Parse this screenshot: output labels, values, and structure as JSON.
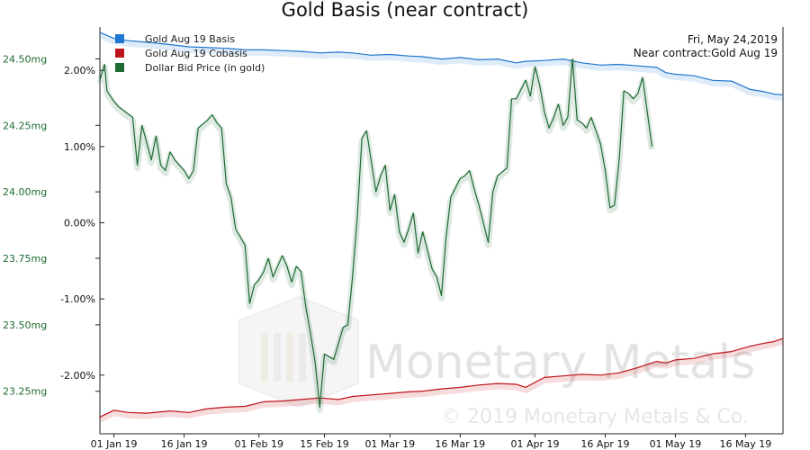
{
  "chart_data": {
    "type": "line",
    "title": "Gold Basis (near contract)",
    "info": {
      "date": "Fri, May 24,2019",
      "near_contract": "Near contract:Gold Aug 19"
    },
    "x_ticks": [
      "01 Jan 19",
      "16 Jan 19",
      "01 Feb 19",
      "15 Feb 19",
      "01 Mar 19",
      "16 Mar 19",
      "01 Apr 19",
      "16 Apr 19",
      "01 May 19",
      "16 May 19"
    ],
    "left_axis": {
      "ticks": [
        "24.50mg",
        "24.25mg",
        "24.00mg",
        "23.75mg",
        "23.50mg",
        "23.25mg"
      ],
      "values": [
        24.5,
        24.25,
        24.0,
        23.75,
        23.5,
        23.25
      ],
      "range": [
        23.09,
        24.62
      ],
      "color": "#1f6b33"
    },
    "right_axis": {
      "ticks": [
        "2.00%",
        "1.00%",
        "0.00%",
        "-1.00%",
        "-2.00%"
      ],
      "values": [
        2.0,
        1.0,
        0.0,
        -1.0,
        -2.0
      ],
      "range": [
        -2.77,
        2.57
      ]
    },
    "x_range": [
      -3,
      143
    ],
    "series": [
      {
        "name": "Gold Aug 19 Basis",
        "color": "#1f77d0",
        "axis": "right",
        "points": [
          [
            -3,
            2.5
          ],
          [
            0,
            2.42
          ],
          [
            3,
            2.39
          ],
          [
            7,
            2.37
          ],
          [
            12,
            2.34
          ],
          [
            16,
            2.31
          ],
          [
            20,
            2.3
          ],
          [
            24,
            2.29
          ],
          [
            28,
            2.27
          ],
          [
            32,
            2.27
          ],
          [
            36,
            2.26
          ],
          [
            40,
            2.25
          ],
          [
            44,
            2.23
          ],
          [
            48,
            2.24
          ],
          [
            51,
            2.23
          ],
          [
            55,
            2.2
          ],
          [
            59,
            2.21
          ],
          [
            63,
            2.19
          ],
          [
            66,
            2.18
          ],
          [
            70,
            2.15
          ],
          [
            74,
            2.17
          ],
          [
            78,
            2.14
          ],
          [
            82,
            2.15
          ],
          [
            86,
            2.1
          ],
          [
            88,
            2.12
          ],
          [
            92,
            2.13
          ],
          [
            96,
            2.15
          ],
          [
            100,
            2.1
          ],
          [
            104,
            2.07
          ],
          [
            108,
            2.08
          ],
          [
            112,
            2.06
          ],
          [
            116,
            2.04
          ],
          [
            118,
            1.97
          ],
          [
            120,
            1.95
          ],
          [
            124,
            1.93
          ],
          [
            128,
            1.87
          ],
          [
            132,
            1.86
          ],
          [
            136,
            1.75
          ],
          [
            139,
            1.72
          ],
          [
            141,
            1.69
          ],
          [
            143,
            1.68
          ]
        ]
      },
      {
        "name": "Gold Aug 19 Cobasis",
        "color": "#c0141b",
        "axis": "right",
        "points": [
          [
            -3,
            -2.55
          ],
          [
            0,
            -2.46
          ],
          [
            3,
            -2.49
          ],
          [
            7,
            -2.5
          ],
          [
            12,
            -2.47
          ],
          [
            16,
            -2.49
          ],
          [
            20,
            -2.44
          ],
          [
            24,
            -2.42
          ],
          [
            28,
            -2.41
          ],
          [
            32,
            -2.35
          ],
          [
            36,
            -2.34
          ],
          [
            40,
            -2.32
          ],
          [
            44,
            -2.3
          ],
          [
            48,
            -2.32
          ],
          [
            51,
            -2.28
          ],
          [
            55,
            -2.26
          ],
          [
            59,
            -2.24
          ],
          [
            63,
            -2.22
          ],
          [
            66,
            -2.21
          ],
          [
            70,
            -2.18
          ],
          [
            74,
            -2.16
          ],
          [
            78,
            -2.13
          ],
          [
            82,
            -2.11
          ],
          [
            86,
            -2.12
          ],
          [
            88,
            -2.16
          ],
          [
            92,
            -2.03
          ],
          [
            96,
            -2.01
          ],
          [
            100,
            -1.99
          ],
          [
            104,
            -2.0
          ],
          [
            108,
            -1.97
          ],
          [
            112,
            -1.9
          ],
          [
            116,
            -1.82
          ],
          [
            118,
            -1.84
          ],
          [
            120,
            -1.8
          ],
          [
            124,
            -1.78
          ],
          [
            128,
            -1.72
          ],
          [
            132,
            -1.69
          ],
          [
            136,
            -1.62
          ],
          [
            139,
            -1.58
          ],
          [
            141,
            -1.56
          ],
          [
            143,
            -1.52
          ]
        ]
      },
      {
        "name": "Dollar Bid Price (in gold)",
        "color": "#1d6a33",
        "axis": "left",
        "points": [
          [
            -3,
            24.42
          ],
          [
            -2,
            24.48
          ],
          [
            -1.5,
            24.38
          ],
          [
            0,
            24.34
          ],
          [
            1,
            24.32
          ],
          [
            4,
            24.28
          ],
          [
            5,
            24.1
          ],
          [
            6,
            24.25
          ],
          [
            8,
            24.12
          ],
          [
            9,
            24.21
          ],
          [
            10,
            24.1
          ],
          [
            11,
            24.08
          ],
          [
            12,
            24.15
          ],
          [
            13,
            24.12
          ],
          [
            15,
            24.08
          ],
          [
            16,
            24.05
          ],
          [
            17,
            24.08
          ],
          [
            18,
            24.24
          ],
          [
            20,
            24.27
          ],
          [
            21,
            24.29
          ],
          [
            22,
            24.26
          ],
          [
            23,
            24.24
          ],
          [
            24,
            24.03
          ],
          [
            25,
            23.98
          ],
          [
            26,
            23.86
          ],
          [
            28,
            23.8
          ],
          [
            29,
            23.58
          ],
          [
            30,
            23.65
          ],
          [
            31,
            23.67
          ],
          [
            32,
            23.7
          ],
          [
            33,
            23.75
          ],
          [
            34,
            23.68
          ],
          [
            35,
            23.72
          ],
          [
            36,
            23.76
          ],
          [
            37,
            23.72
          ],
          [
            38,
            23.66
          ],
          [
            39,
            23.72
          ],
          [
            40,
            23.7
          ],
          [
            41,
            23.57
          ],
          [
            42,
            23.47
          ],
          [
            43,
            23.36
          ],
          [
            44,
            23.19
          ],
          [
            45,
            23.39
          ],
          [
            46,
            23.38
          ],
          [
            47,
            23.37
          ],
          [
            48,
            23.43
          ],
          [
            49,
            23.49
          ],
          [
            50,
            23.5
          ],
          [
            51,
            23.68
          ],
          [
            52,
            23.9
          ],
          [
            53,
            24.2
          ],
          [
            54,
            24.23
          ],
          [
            56,
            24.0
          ],
          [
            57,
            24.06
          ],
          [
            58,
            24.1
          ],
          [
            59,
            23.93
          ],
          [
            60,
            23.99
          ],
          [
            61,
            23.85
          ],
          [
            62,
            23.81
          ],
          [
            63,
            23.86
          ],
          [
            64,
            23.92
          ],
          [
            65,
            23.77
          ],
          [
            66,
            23.85
          ],
          [
            68,
            23.71
          ],
          [
            69,
            23.68
          ],
          [
            70,
            23.61
          ],
          [
            71,
            23.83
          ],
          [
            72,
            23.98
          ],
          [
            74,
            24.05
          ],
          [
            75,
            24.06
          ],
          [
            76,
            24.08
          ],
          [
            77,
            24.01
          ],
          [
            78,
            23.95
          ],
          [
            79,
            23.88
          ],
          [
            80,
            23.81
          ],
          [
            81,
            24.0
          ],
          [
            82,
            24.06
          ],
          [
            84,
            24.09
          ],
          [
            85,
            24.35
          ],
          [
            86,
            24.35
          ],
          [
            88,
            24.42
          ],
          [
            89,
            24.36
          ],
          [
            90,
            24.47
          ],
          [
            91,
            24.4
          ],
          [
            92,
            24.3
          ],
          [
            93,
            24.24
          ],
          [
            94,
            24.28
          ],
          [
            95,
            24.33
          ],
          [
            96,
            24.25
          ],
          [
            97,
            24.28
          ],
          [
            98,
            24.5
          ],
          [
            99,
            24.27
          ],
          [
            100,
            24.26
          ],
          [
            101,
            24.24
          ],
          [
            102,
            24.28
          ],
          [
            103,
            24.23
          ],
          [
            104,
            24.18
          ],
          [
            105,
            24.08
          ],
          [
            106,
            23.94
          ],
          [
            107,
            23.95
          ],
          [
            108,
            24.12
          ],
          [
            109,
            24.38
          ],
          [
            110,
            24.37
          ],
          [
            111,
            24.35
          ],
          [
            112,
            24.37
          ],
          [
            113,
            24.43
          ],
          [
            114,
            24.3
          ],
          [
            115,
            24.17
          ]
        ]
      }
    ],
    "watermark": {
      "brand": "Monetary Metals",
      "copyright": "© 2019 Monetary Metals & Co."
    }
  }
}
